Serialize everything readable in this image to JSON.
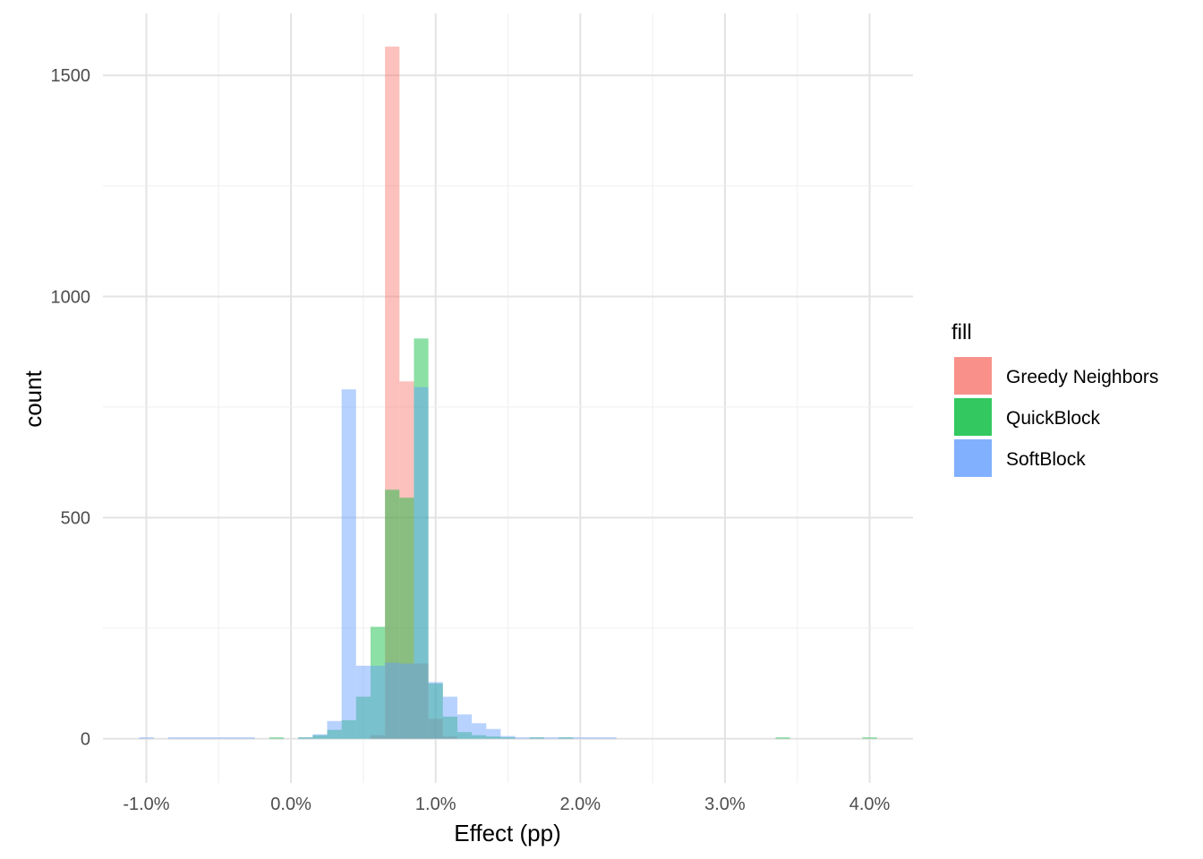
{
  "chart_data": {
    "type": "histogram",
    "xlabel": "Effect (pp)",
    "ylabel": "count",
    "x_ticks": [
      -1.0,
      0.0,
      1.0,
      2.0,
      3.0,
      4.0
    ],
    "x_tick_labels": [
      "-1.0%",
      "0.0%",
      "1.0%",
      "2.0%",
      "3.0%",
      "4.0%"
    ],
    "y_ticks": [
      0,
      500,
      1000,
      1500
    ],
    "y_tick_labels": [
      "0",
      "500",
      "1000",
      "1500"
    ],
    "xlim": [
      -1.3,
      4.3
    ],
    "ylim": [
      -100,
      1640
    ],
    "grid": true,
    "bin_width": 0.1,
    "legend": {
      "title": "fill",
      "position": "right",
      "entries": [
        "Greedy Neighbors",
        "QuickBlock",
        "SoftBlock"
      ]
    },
    "series": [
      {
        "name": "Greedy Neighbors",
        "color": "#F8766D",
        "bins": [
          {
            "x0": 0.55,
            "count": 8
          },
          {
            "x0": 0.65,
            "count": 1565
          },
          {
            "x0": 0.75,
            "count": 808
          },
          {
            "x0": 0.85,
            "count": 170
          },
          {
            "x0": 0.95,
            "count": 45
          },
          {
            "x0": 1.05,
            "count": 5
          }
        ]
      },
      {
        "name": "QuickBlock",
        "color": "#00BA38",
        "bins": [
          {
            "x0": -0.15,
            "count": 2
          },
          {
            "x0": 0.05,
            "count": 3
          },
          {
            "x0": 0.15,
            "count": 8
          },
          {
            "x0": 0.25,
            "count": 20
          },
          {
            "x0": 0.35,
            "count": 42
          },
          {
            "x0": 0.45,
            "count": 95
          },
          {
            "x0": 0.55,
            "count": 253
          },
          {
            "x0": 0.65,
            "count": 563
          },
          {
            "x0": 0.75,
            "count": 545
          },
          {
            "x0": 0.85,
            "count": 905
          },
          {
            "x0": 0.95,
            "count": 125
          },
          {
            "x0": 1.05,
            "count": 50
          },
          {
            "x0": 1.15,
            "count": 15
          },
          {
            "x0": 1.25,
            "count": 8
          },
          {
            "x0": 1.35,
            "count": 5
          },
          {
            "x0": 1.45,
            "count": 2
          },
          {
            "x0": 1.65,
            "count": 1
          },
          {
            "x0": 1.85,
            "count": 1
          },
          {
            "x0": 3.35,
            "count": 1
          },
          {
            "x0": 3.95,
            "count": 1
          }
        ]
      },
      {
        "name": "SoftBlock",
        "color": "#619CFF",
        "bins": [
          {
            "x0": -1.05,
            "count": 1
          },
          {
            "x0": -0.85,
            "count": 1
          },
          {
            "x0": -0.75,
            "count": 1
          },
          {
            "x0": -0.65,
            "count": 1
          },
          {
            "x0": -0.55,
            "count": 1
          },
          {
            "x0": -0.45,
            "count": 1
          },
          {
            "x0": -0.35,
            "count": 1
          },
          {
            "x0": 0.05,
            "count": 3
          },
          {
            "x0": 0.15,
            "count": 10
          },
          {
            "x0": 0.25,
            "count": 40
          },
          {
            "x0": 0.35,
            "count": 790
          },
          {
            "x0": 0.45,
            "count": 165
          },
          {
            "x0": 0.55,
            "count": 165
          },
          {
            "x0": 0.65,
            "count": 172
          },
          {
            "x0": 0.75,
            "count": 170
          },
          {
            "x0": 0.85,
            "count": 795
          },
          {
            "x0": 0.95,
            "count": 128
          },
          {
            "x0": 1.05,
            "count": 95
          },
          {
            "x0": 1.15,
            "count": 55
          },
          {
            "x0": 1.25,
            "count": 35
          },
          {
            "x0": 1.35,
            "count": 22
          },
          {
            "x0": 1.45,
            "count": 6
          },
          {
            "x0": 1.55,
            "count": 2
          },
          {
            "x0": 1.65,
            "count": 2
          },
          {
            "x0": 1.75,
            "count": 1
          },
          {
            "x0": 1.85,
            "count": 1
          },
          {
            "x0": 1.95,
            "count": 1
          },
          {
            "x0": 2.05,
            "count": 1
          },
          {
            "x0": 2.15,
            "count": 1
          }
        ]
      }
    ]
  }
}
